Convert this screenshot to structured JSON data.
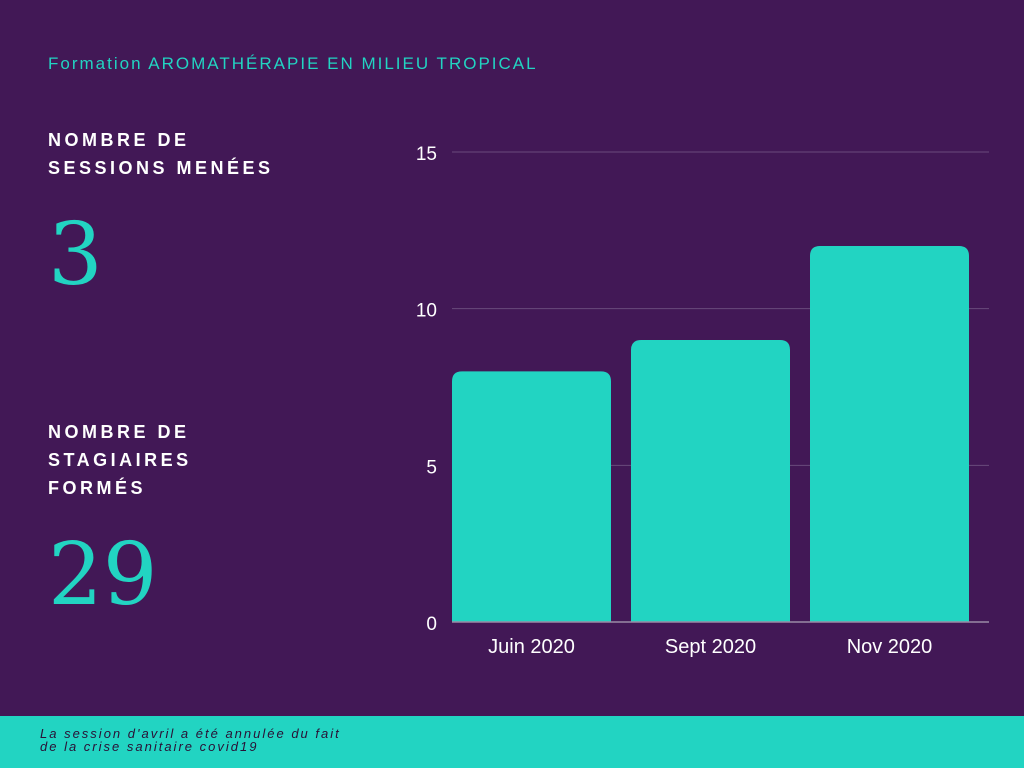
{
  "subtitle": "Formation AROMATHÉRAPIE EN MILIEU TROPICAL",
  "stats": [
    {
      "label_lines": [
        "NOMBRE DE",
        "SESSIONS MENÉES"
      ],
      "value": "3"
    },
    {
      "label_lines": [
        "NOMBRE DE",
        "STAGIAIRES",
        "FORMÉS"
      ],
      "value": "29"
    }
  ],
  "chart_data": {
    "type": "bar",
    "categories": [
      "Juin 2020",
      "Sept 2020",
      "Nov 2020"
    ],
    "values": [
      8,
      9,
      12
    ],
    "ylim": [
      0,
      15
    ],
    "yticks": [
      0,
      5,
      10,
      15
    ],
    "grid": true,
    "title": "",
    "xlabel": "",
    "ylabel": ""
  },
  "footer_note_lines": [
    "La session d'avril a été annulée du fait",
    "de la crise sanitaire covid19"
  ],
  "colors": {
    "background": "#421856",
    "accent": "#22d4c2",
    "text": "#ffffff",
    "grid": "#6a4a7c"
  }
}
